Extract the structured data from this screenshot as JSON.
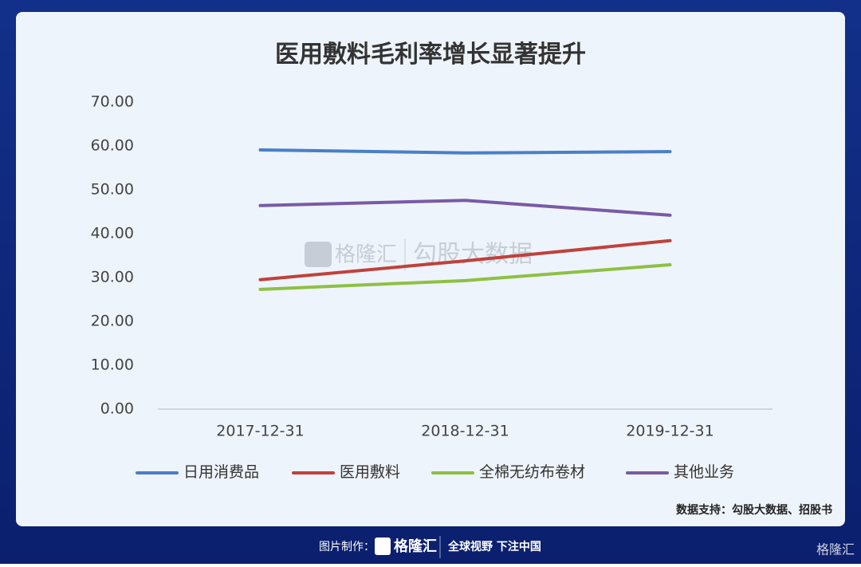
{
  "chart_data": {
    "type": "line",
    "title": "医用敷料毛利率增长显著提升",
    "categories": [
      "2017-12-31",
      "2018-12-31",
      "2019-12-31"
    ],
    "series": [
      {
        "name": "日用消费品",
        "color": "#4a7fc9",
        "values": [
          59.1,
          58.4,
          58.7
        ]
      },
      {
        "name": "医用敷料",
        "color": "#c0413b",
        "values": [
          29.5,
          33.8,
          38.4
        ]
      },
      {
        "name": "全棉无纺布卷材",
        "color": "#8ec043",
        "values": [
          27.3,
          29.3,
          32.9
        ]
      },
      {
        "name": "其他业务",
        "color": "#7a5aa6",
        "values": [
          46.4,
          47.6,
          44.2
        ]
      }
    ],
    "ylim": [
      0,
      70
    ],
    "yticks": [
      {
        "value": 0,
        "label": "0.00"
      },
      {
        "value": 10,
        "label": "10.00"
      },
      {
        "value": 20,
        "label": "20.00"
      },
      {
        "value": 30,
        "label": "30.00"
      },
      {
        "value": 40,
        "label": "40.00"
      },
      {
        "value": 50,
        "label": "50.00"
      },
      {
        "value": 60,
        "label": "60.00"
      },
      {
        "value": 70,
        "label": "70.00"
      }
    ],
    "grid": false,
    "legend": "bottom",
    "source": "数据支持：勾股大数据、招股书"
  },
  "watermark": {
    "brand": "格隆汇",
    "product": "勾股大数据"
  },
  "footer": {
    "made_by": "图片制作：",
    "brand": "格隆汇",
    "slogan": "全球视野 下注中国",
    "corner": "格隆汇"
  }
}
